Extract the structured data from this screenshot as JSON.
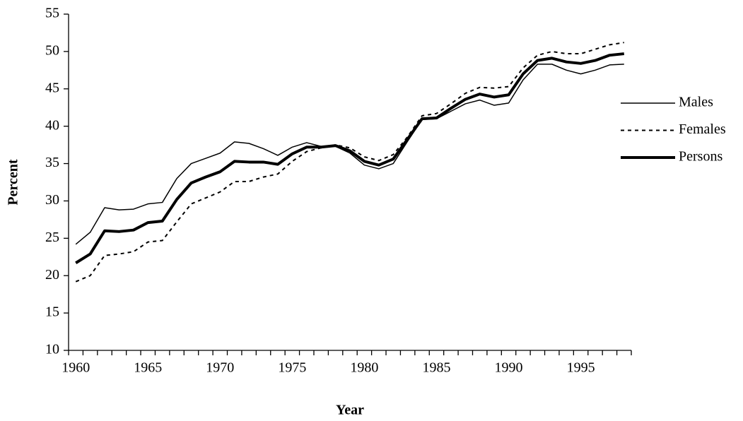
{
  "chart_data": {
    "type": "line",
    "x_label": "Year",
    "y_label": "Percent",
    "categories": [
      "1960",
      null,
      null,
      null,
      null,
      "1965",
      null,
      null,
      null,
      null,
      "1970",
      null,
      null,
      null,
      null,
      "1975",
      null,
      null,
      null,
      null,
      "1980",
      null,
      null,
      null,
      null,
      "1985",
      null,
      null,
      null,
      null,
      "1990",
      null,
      null,
      null,
      null,
      "1995",
      null,
      null,
      null
    ],
    "series": [
      {
        "name": "Males",
        "color": "#000000",
        "width": 1.5,
        "dash": "none",
        "values": [
          24.2,
          25.8,
          29.1,
          28.8,
          28.9,
          29.6,
          29.8,
          33.0,
          35.0,
          35.7,
          36.4,
          37.9,
          37.7,
          37.0,
          36.1,
          37.2,
          37.8,
          37.3,
          37.3,
          36.4,
          34.8,
          34.3,
          35.0,
          38.0,
          40.9,
          41.0,
          42.0,
          43.0,
          43.5,
          42.8,
          43.1,
          46.2,
          48.3,
          48.3,
          47.5,
          47.0,
          47.5,
          48.2,
          48.3
        ]
      },
      {
        "name": "Females",
        "color": "#000000",
        "width": 2,
        "dash": "5,5",
        "values": [
          19.2,
          20.0,
          22.7,
          22.9,
          23.2,
          24.5,
          24.7,
          27.2,
          29.6,
          30.4,
          31.2,
          32.6,
          32.6,
          33.2,
          33.6,
          35.3,
          36.6,
          37.1,
          37.5,
          37.1,
          35.9,
          35.4,
          36.2,
          38.6,
          41.4,
          41.7,
          43.0,
          44.4,
          45.2,
          45.1,
          45.3,
          47.8,
          49.5,
          50.0,
          49.7,
          49.7,
          50.3,
          50.9,
          51.2
        ]
      },
      {
        "name": "Persons",
        "color": "#000000",
        "width": 4,
        "dash": "none",
        "values": [
          21.7,
          22.9,
          26.0,
          25.9,
          26.1,
          27.1,
          27.3,
          30.2,
          32.4,
          33.2,
          33.9,
          35.3,
          35.2,
          35.2,
          34.9,
          36.3,
          37.2,
          37.2,
          37.4,
          36.7,
          35.3,
          34.8,
          35.6,
          38.3,
          41.0,
          41.1,
          42.4,
          43.6,
          44.3,
          43.9,
          44.2,
          47.0,
          48.8,
          49.1,
          48.6,
          48.4,
          48.8,
          49.5,
          49.7
        ]
      }
    ],
    "ylim": [
      10,
      55
    ],
    "yticks": [
      10,
      15,
      20,
      25,
      30,
      35,
      40,
      45,
      50,
      55
    ],
    "grid": false,
    "legend": "right"
  }
}
